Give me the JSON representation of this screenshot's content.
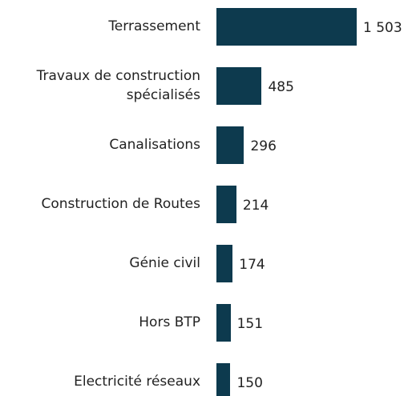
{
  "chart_data": {
    "type": "bar",
    "orientation": "horizontal",
    "categories": [
      "Terrassement",
      "Travaux de construction spécialisés",
      "Canalisations",
      "Construction de Routes",
      "Génie civil",
      "Hors BTP",
      "Electricité réseaux"
    ],
    "values": [
      1503,
      485,
      296,
      214,
      174,
      151,
      150
    ],
    "value_labels": [
      "1 503",
      "485",
      "296",
      "214",
      "174",
      "151",
      "150"
    ],
    "color": "#0d3a4e"
  }
}
